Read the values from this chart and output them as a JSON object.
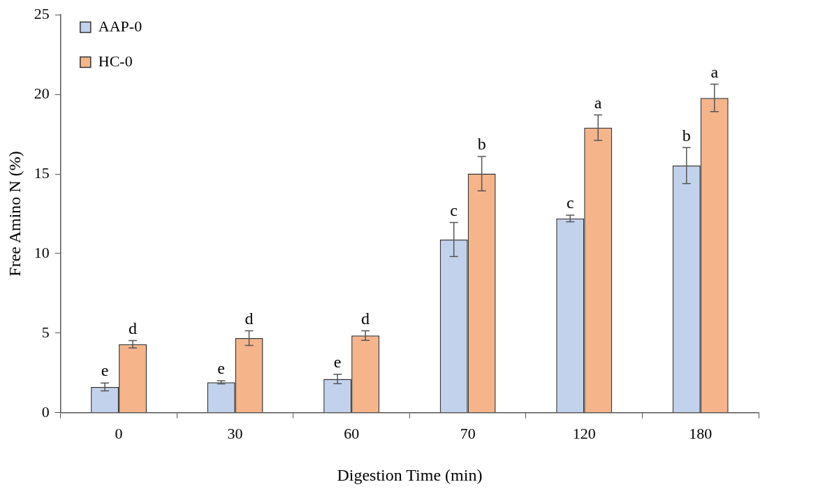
{
  "chart_data": {
    "type": "bar",
    "xlabel": "Digestion Time (min)",
    "ylabel": "Free Amino N (%)",
    "categories": [
      "0",
      "30",
      "60",
      "70",
      "120",
      "180"
    ],
    "series": [
      {
        "name": "AAP-0",
        "color": "#c3d2ec",
        "values": [
          1.62,
          1.91,
          2.12,
          10.88,
          12.2,
          15.53
        ],
        "errors": [
          0.25,
          0.1,
          0.3,
          1.07,
          0.21,
          1.13
        ],
        "value_labels": [
          "e",
          "e",
          "e",
          "c",
          "c",
          "b"
        ]
      },
      {
        "name": "HC-0",
        "color": "#f6b48a",
        "values": [
          4.3,
          4.69,
          4.85,
          15.02,
          17.91,
          19.78
        ],
        "errors": [
          0.23,
          0.46,
          0.3,
          1.08,
          0.8,
          0.86
        ],
        "value_labels": [
          "d",
          "d",
          "d",
          "b",
          "a",
          "a"
        ]
      }
    ],
    "ylim": [
      0,
      25
    ],
    "yticks": [
      0,
      5,
      10,
      15,
      20,
      25
    ],
    "grid": false,
    "legend": "top left"
  }
}
